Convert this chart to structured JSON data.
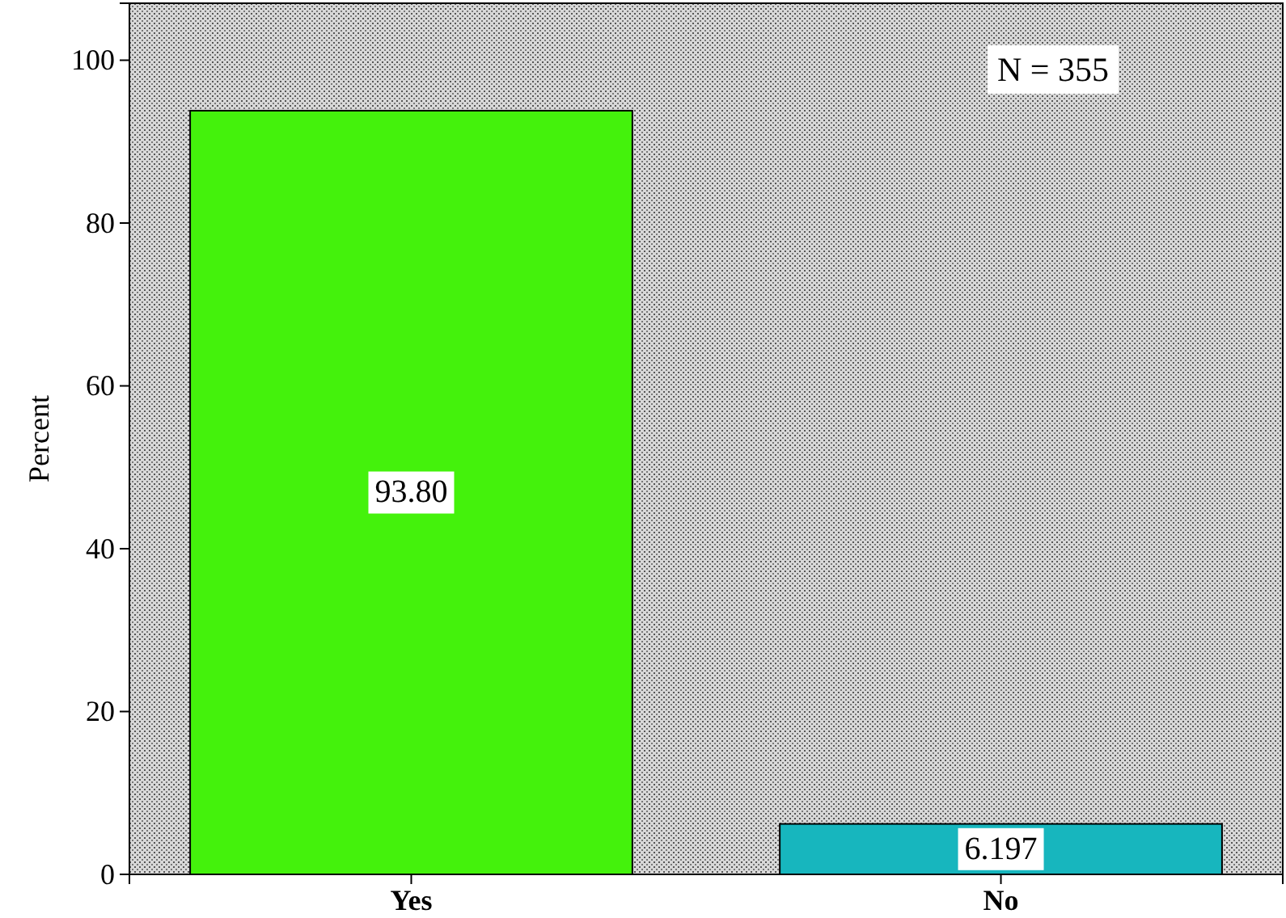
{
  "chart_data": {
    "type": "bar",
    "ylabel": "Percent",
    "categories": [
      "Yes",
      "No"
    ],
    "values": [
      93.8,
      6.197
    ],
    "colors": [
      "#44f20c",
      "#17b6be"
    ],
    "value_labels": [
      "93.80",
      "6.197"
    ],
    "ylim": [
      0,
      107
    ],
    "yticks": [
      0,
      20,
      40,
      60,
      80,
      100
    ],
    "grid": false,
    "annotations": [
      "N = 355"
    ]
  }
}
